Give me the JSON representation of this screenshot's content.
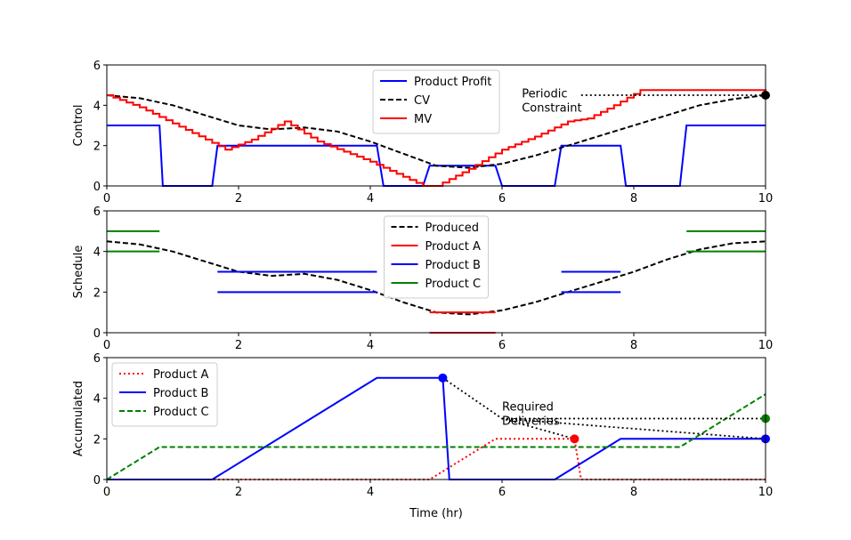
{
  "chart_data": [
    {
      "type": "line",
      "ylabel": "Control",
      "xlim": [
        0,
        10
      ],
      "ylim": [
        0,
        6
      ],
      "xticks": [
        "0",
        "2",
        "4",
        "6",
        "8",
        "10"
      ],
      "yticks": [
        "0",
        "2",
        "4",
        "6"
      ],
      "legend_position": "top-center",
      "series": [
        {
          "name": "Product Profit",
          "color": "#0000ff",
          "dash": "solid",
          "x": [
            0,
            0.8,
            0.85,
            1.6,
            1.68,
            4.1,
            4.2,
            4.8,
            4.9,
            5.9,
            6.0,
            6.8,
            6.9,
            7.8,
            7.88,
            8.7,
            8.8,
            10
          ],
          "y": [
            3,
            3,
            0,
            0,
            2,
            2,
            0,
            0,
            1,
            1,
            0,
            0,
            2,
            2,
            0,
            0,
            3,
            3
          ]
        },
        {
          "name": "CV",
          "color": "#000000",
          "dash": "dashed",
          "x": [
            0,
            0.5,
            1,
            1.5,
            2,
            2.5,
            3,
            3.5,
            4,
            4.5,
            5,
            5.5,
            6,
            6.5,
            7,
            7.5,
            8,
            8.5,
            9,
            9.5,
            10
          ],
          "y": [
            4.5,
            4.35,
            4.0,
            3.5,
            3.0,
            2.8,
            2.9,
            2.7,
            2.2,
            1.6,
            1.0,
            0.9,
            1.1,
            1.5,
            2.0,
            2.5,
            3.0,
            3.5,
            4.0,
            4.3,
            4.5
          ]
        },
        {
          "name": "MV",
          "color": "#ff0000",
          "dash": "solid",
          "stairs": true,
          "x": [
            0,
            0.5,
            1,
            1.5,
            1.8,
            2.2,
            2.7,
            3.2,
            4,
            4.8,
            5.0,
            5.5,
            6,
            6.5,
            7,
            7.3,
            7.7,
            8.1,
            9.9,
            10
          ],
          "y": [
            4.5,
            3.9,
            3.1,
            2.3,
            1.8,
            2.3,
            3.2,
            2.2,
            1.2,
            0,
            0,
            0.85,
            1.8,
            2.45,
            3.2,
            3.35,
            4.0,
            4.75,
            4.75,
            4.5
          ]
        }
      ],
      "annotations": [
        {
          "text": [
            "Periodic",
            "Constraint"
          ],
          "x": 6.3,
          "y": 4.4
        }
      ],
      "constraint_line": {
        "x": [
          7.2,
          10
        ],
        "y": [
          4.5,
          4.5
        ]
      },
      "marker": {
        "x": 10,
        "y": 4.5,
        "color": "#000000"
      }
    },
    {
      "type": "line",
      "ylabel": "Schedule",
      "xlim": [
        0,
        10
      ],
      "ylim": [
        0,
        6
      ],
      "xticks": [
        "0",
        "2",
        "4",
        "6",
        "8",
        "10"
      ],
      "yticks": [
        "0",
        "2",
        "4",
        "6"
      ],
      "legend_position": "top-center",
      "series": [
        {
          "name": "Produced",
          "color": "#000000",
          "dash": "dashed",
          "x": [
            0,
            0.5,
            1,
            1.5,
            2,
            2.5,
            3,
            3.5,
            4,
            4.5,
            5,
            5.5,
            6,
            6.5,
            7,
            7.5,
            8,
            8.5,
            9,
            9.5,
            10
          ],
          "y": [
            4.5,
            4.35,
            4.0,
            3.5,
            3.0,
            2.8,
            2.9,
            2.6,
            2.1,
            1.5,
            1.0,
            0.9,
            1.1,
            1.5,
            2.0,
            2.5,
            3.0,
            3.6,
            4.1,
            4.4,
            4.5
          ]
        },
        {
          "name": "Product A",
          "color": "#ff0000",
          "dash": "solid",
          "segments": [
            [
              [
                4.9,
                1
              ],
              [
                5.9,
                1
              ]
            ],
            [
              [
                4.9,
                0
              ],
              [
                5.9,
                0
              ]
            ]
          ]
        },
        {
          "name": "Product B",
          "color": "#0000ff",
          "dash": "solid",
          "segments": [
            [
              [
                1.68,
                3
              ],
              [
                4.1,
                3
              ]
            ],
            [
              [
                1.68,
                2
              ],
              [
                4.1,
                2
              ]
            ],
            [
              [
                6.9,
                3
              ],
              [
                7.8,
                3
              ]
            ],
            [
              [
                6.9,
                2
              ],
              [
                7.8,
                2
              ]
            ]
          ]
        },
        {
          "name": "Product C",
          "color": "#008000",
          "dash": "solid",
          "segments": [
            [
              [
                0,
                5
              ],
              [
                0.8,
                5
              ]
            ],
            [
              [
                0,
                4
              ],
              [
                0.8,
                4
              ]
            ],
            [
              [
                8.8,
                5
              ],
              [
                10,
                5
              ]
            ],
            [
              [
                8.8,
                4
              ],
              [
                10,
                4
              ]
            ]
          ]
        }
      ]
    },
    {
      "type": "line",
      "ylabel": "Accumulated",
      "xlabel": "Time (hr)",
      "xlim": [
        0,
        10
      ],
      "ylim": [
        0,
        6
      ],
      "xticks": [
        "0",
        "2",
        "4",
        "6",
        "8",
        "10"
      ],
      "yticks": [
        "0",
        "2",
        "4",
        "6"
      ],
      "legend_position": "top-left",
      "series": [
        {
          "name": "Product A",
          "color": "#ff0000",
          "dash": "dotted",
          "x": [
            0,
            4.9,
            5.9,
            7.1,
            7.2,
            10
          ],
          "y": [
            0,
            0,
            2,
            2,
            0,
            0
          ]
        },
        {
          "name": "Product B",
          "color": "#0000ff",
          "dash": "solid",
          "x": [
            0,
            1.6,
            4.1,
            5.1,
            5.2,
            6.8,
            7.8,
            10
          ],
          "y": [
            0,
            0,
            5,
            5,
            0,
            0,
            2,
            2
          ]
        },
        {
          "name": "Product C",
          "color": "#008000",
          "dash": "dashed",
          "x": [
            0,
            0.8,
            8.7,
            10
          ],
          "y": [
            0,
            1.6,
            1.6,
            4.2
          ]
        }
      ],
      "annotations": [
        {
          "text": [
            "Required",
            "Deliveries"
          ],
          "x": 6.0,
          "y": 3.4
        }
      ],
      "delivery_lines": [
        {
          "x": [
            5.1,
            6.0,
            7.1
          ],
          "y": [
            5,
            3,
            2
          ]
        },
        {
          "x": [
            6.0,
            10
          ],
          "y": [
            3,
            3
          ]
        },
        {
          "x": [
            6.0,
            10
          ],
          "y": [
            3,
            2
          ]
        }
      ],
      "markers": [
        {
          "x": 5.1,
          "y": 5,
          "color": "#0000ff"
        },
        {
          "x": 7.1,
          "y": 2,
          "color": "#ff0000"
        },
        {
          "x": 10,
          "y": 3,
          "color": "#008000"
        },
        {
          "x": 10,
          "y": 2,
          "color": "#0000ff"
        }
      ]
    }
  ]
}
